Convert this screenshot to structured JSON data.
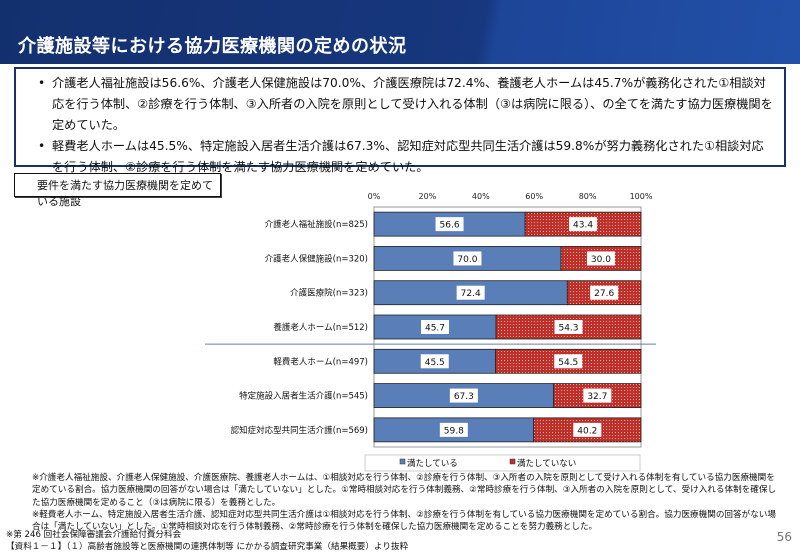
{
  "title": "介護施設等における協力医療機関の定めの状況",
  "summary": [
    "介護老人福祉施設は56.6%、介護老人保健施設は70.0%、介護医療院は72.4%、養護老人ホームは45.7%が義務化された①相談対応を行う体制、②診療を行う体制、③入所者の入院を原則として受け入れる体制（③は病院に限る）、の全てを満たす協力医療機関を定めていた。",
    "軽費老人ホームは45.5%、特定施設入居者生活介護は67.3%、認知症対応型共同生活介護は59.8%が努力義務化された①相談対応を行う体制、②診療を行う体制を満たす協力医療機関を定めていた。"
  ],
  "chart_subtitle": "要件を満たす協力医療機関を定めている施設",
  "chart_data": {
    "type": "bar",
    "orientation": "horizontal",
    "stacked": true,
    "xlim": [
      0,
      100
    ],
    "x_ticks": [
      "0%",
      "20%",
      "40%",
      "60%",
      "80%",
      "100%"
    ],
    "categories": [
      "介護老人福祉施設(n=825)",
      "介護老人保健施設(n=320)",
      "介護医療院(n=323)",
      "養護老人ホーム(n=512)",
      "軽費老人ホーム(n=497)",
      "特定施設入居者生活介護(n=545)",
      "認知症対応型共同生活介護(n=569)"
    ],
    "series": [
      {
        "name": "満たしている",
        "color": "#5a7fb8",
        "values": [
          56.6,
          70.0,
          72.4,
          45.7,
          45.5,
          67.3,
          59.8
        ]
      },
      {
        "name": "満たしていない",
        "color": "#c0302a",
        "values": [
          43.4,
          30.0,
          27.6,
          54.3,
          54.5,
          32.7,
          40.2
        ]
      }
    ],
    "legend": "bottom",
    "grid": false
  },
  "notes": [
    "※介護老人福祉施設、介護老人保健施設、介護医療院、養護老人ホームは、①相談対応を行う体制、②診療を行う体制、③入所者の入院を原則として受け入れる体制を有している協力医療機関を定めている割合。協力医療機関の回答がない場合は「満たしていない」とした。①常時相談対応を行う体制義務、②常時診療を行う体制、③入所者の入院を原則として、受け入れる体制を確保した協力医療機関を定めること（③は病院に限る）を義務とした。",
    "※軽費老人ホーム、特定施設入居者生活介護、認知症対応型共同生活介護は①相談対応を行う体制、②診療を行う体制を有している協力医療機関を定めている割合。協力医療機関の回答がない場合は「満たしていない」とした。①常時相談対応を行う体制義務、②常時診療を行う体制を確保した協力医療機関を定めることを努力義務とした。"
  ],
  "source": [
    "※第 246 回社会保障審議会介護給付費分科会",
    "【資料１－１】（１）高齢者施設等と医療機関の連携体制等 にかかる調査研究事業（結果概要）より抜粋"
  ],
  "page_number": "56"
}
